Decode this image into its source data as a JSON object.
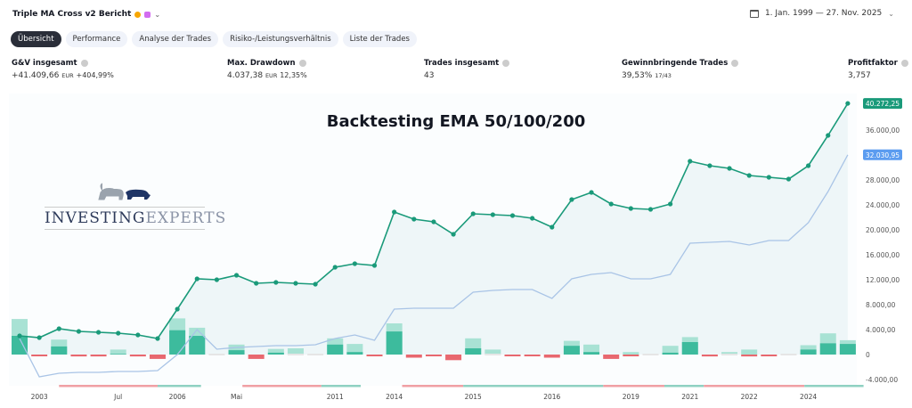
{
  "header": {
    "title": "Triple MA Cross v2 Bericht",
    "date_range": "1. Jan. 1999 — 27. Nov. 2025"
  },
  "tabs": [
    {
      "label": "Übersicht",
      "active": true
    },
    {
      "label": "Performance"
    },
    {
      "label": "Analyse der Trades"
    },
    {
      "label": "Risiko-/Leistungsverhältnis"
    },
    {
      "label": "Liste der Trades"
    }
  ],
  "stats": [
    {
      "label": "G&V insgesamt",
      "value": "+41.409,66",
      "unit": "EUR",
      "extra": "+404,99%"
    },
    {
      "label": "Max. Drawdown",
      "value": "4.037,38",
      "unit": "EUR",
      "extra": "12,35%"
    },
    {
      "label": "Trades insgesamt",
      "value": "43",
      "unit": "",
      "extra": ""
    },
    {
      "label": "Gewinnbringende Trades",
      "value": "39,53%",
      "unit": "17/43",
      "extra": ""
    },
    {
      "label": "Profitfaktor",
      "value": "3,757",
      "unit": "",
      "extra": ""
    }
  ],
  "overlay_title": "Backtesting EMA 50/100/200",
  "logo": {
    "text_a": "Investing",
    "text_b": "Experts"
  },
  "colors": {
    "equity": "#1a9a7a",
    "buyhold": "#a9c4e6",
    "profit_dark": "#3dbb9d",
    "profit_light": "#a8e2d4",
    "loss": "#e8686f",
    "fill": "#eef6f8",
    "price_badge_equity": "#1a9a7a",
    "price_badge_bh": "#5b9cf0"
  },
  "chart_data": {
    "type": "line",
    "ylim": [
      -5000,
      42000
    ],
    "yticks": [
      -4000,
      0,
      4000,
      8000,
      12000,
      16000,
      20000,
      24000,
      28000,
      36000
    ],
    "ytick_labels": [
      "-4.000,00",
      "0",
      "4.000,00",
      "8.000,00",
      "12.000,00",
      "16.000,00",
      "20.000,00",
      "24.000,00",
      "28.000,00",
      "36.000,00"
    ],
    "last_equity_label": "40.272,25",
    "last_buyhold_label": "32.030,95",
    "xlabels": [
      {
        "t": 1,
        "label": "2003"
      },
      {
        "t": 5,
        "label": "Jul"
      },
      {
        "t": 8,
        "label": "2006"
      },
      {
        "t": 11,
        "label": "Mai"
      },
      {
        "t": 16,
        "label": "2011"
      },
      {
        "t": 19,
        "label": "2014"
      },
      {
        "t": 23,
        "label": "2015"
      },
      {
        "t": 27,
        "label": "2016"
      },
      {
        "t": 31,
        "label": "2019"
      },
      {
        "t": 34,
        "label": "2021"
      },
      {
        "t": 37,
        "label": "2022"
      },
      {
        "t": 40,
        "label": "2024"
      }
    ],
    "equity": [
      3000,
      2714,
      4143,
      3714,
      3571,
      3429,
      3143,
      2571,
      7286,
      12143,
      12000,
      12714,
      11429,
      11571,
      11429,
      11286,
      14000,
      14571,
      14286,
      22857,
      21714,
      21286,
      19286,
      22571,
      22429,
      22286,
      21857,
      20429,
      24857,
      26000,
      24143,
      23429,
      23286,
      24143,
      31000,
      30286,
      29857,
      28714,
      28429,
      28143,
      30286,
      35143,
      40272
    ],
    "buyhold": [
      2571,
      -3571,
      -3000,
      -2857,
      -2857,
      -2714,
      -2714,
      -2571,
      0,
      4000,
      857,
      1143,
      1286,
      1429,
      1429,
      1571,
      2571,
      3143,
      2286,
      7286,
      7429,
      7429,
      7429,
      10000,
      10286,
      10429,
      10429,
      9000,
      12143,
      12857,
      13143,
      12143,
      12143,
      12857,
      17857,
      18000,
      18143,
      17571,
      18286,
      18286,
      21143,
      26143,
      32031
    ],
    "trade_pnl": [
      3000,
      -100,
      1300,
      -300,
      -300,
      100,
      -300,
      -700,
      3900,
      3000,
      0,
      700,
      -700,
      300,
      0,
      0,
      1600,
      400,
      -100,
      3700,
      -500,
      -100,
      -900,
      1000,
      0,
      -100,
      -100,
      -500,
      1400,
      400,
      -700,
      -200,
      0,
      300,
      2000,
      -300,
      0,
      -300,
      -200,
      0,
      800,
      1800,
      1700
    ],
    "trade_runup": [
      5700,
      0,
      2400,
      0,
      0,
      800,
      0,
      0,
      5800,
      4300,
      0,
      1600,
      0,
      900,
      1000,
      0,
      2600,
      1700,
      0,
      5000,
      0,
      0,
      0,
      2600,
      800,
      0,
      0,
      0,
      2200,
      1600,
      0,
      400,
      0,
      1400,
      2800,
      0,
      400,
      800,
      0,
      0,
      1500,
      3400,
      2300
    ],
    "periods": [
      {
        "from": 2,
        "to": 7,
        "type": "loss"
      },
      {
        "from": 7,
        "to": 9.2,
        "type": "gain"
      },
      {
        "from": 11.3,
        "to": 15.3,
        "type": "loss"
      },
      {
        "from": 15.3,
        "to": 17.3,
        "type": "gain"
      },
      {
        "from": 19.4,
        "to": 22.5,
        "type": "loss"
      },
      {
        "from": 22.5,
        "to": 29.6,
        "type": "gain"
      },
      {
        "from": 29.6,
        "to": 32.7,
        "type": "loss"
      },
      {
        "from": 32.7,
        "to": 34.7,
        "type": "gain"
      },
      {
        "from": 34.7,
        "to": 39.8,
        "type": "loss"
      },
      {
        "from": 39.8,
        "to": 42.8,
        "type": "gain"
      }
    ]
  }
}
